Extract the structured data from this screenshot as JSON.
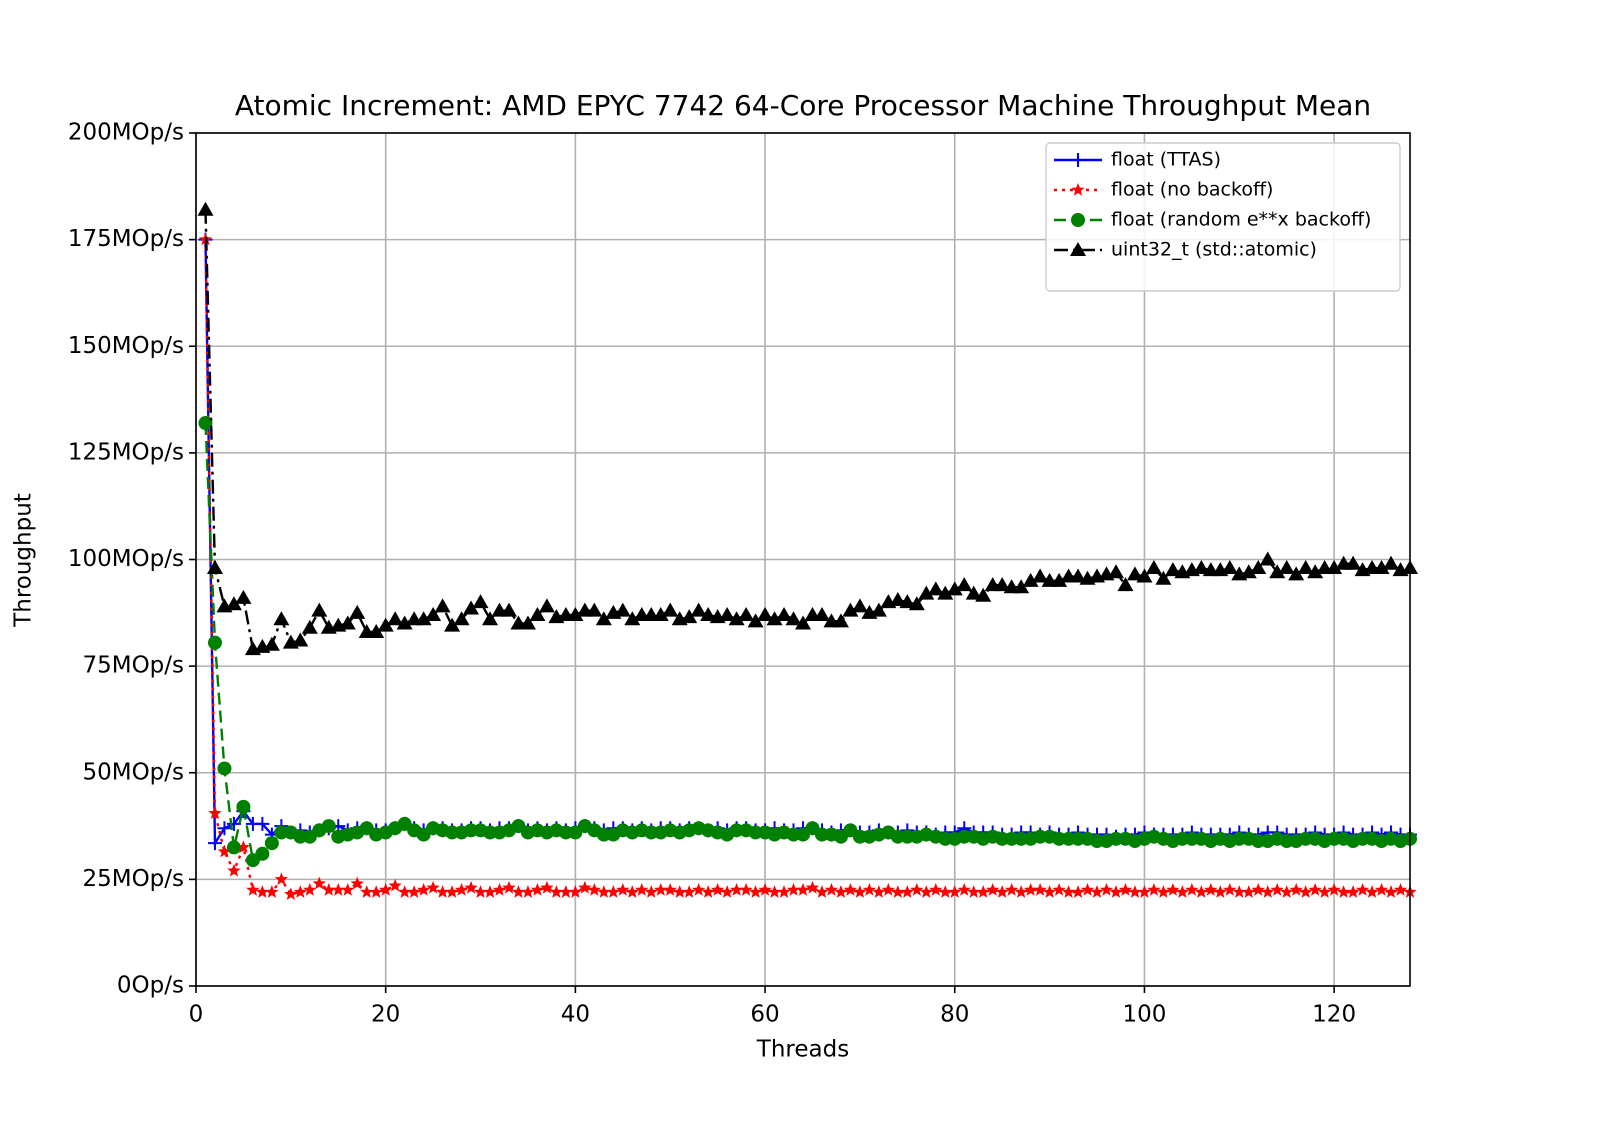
{
  "chart_data": {
    "type": "line",
    "title": "Atomic Increment: AMD EPYC 7742 64-Core Processor Machine Throughput Mean",
    "x_label": "Threads",
    "y_label": "Throughput",
    "xlim": [
      0,
      128
    ],
    "xticks": [
      0,
      20,
      40,
      60,
      80,
      100,
      120
    ],
    "ylim": [
      0,
      200
    ],
    "yticks": [
      {
        "value": 0,
        "label": "0Op/s"
      },
      {
        "value": 25,
        "label": "25MOp/s"
      },
      {
        "value": 50,
        "label": "50MOp/s"
      },
      {
        "value": 75,
        "label": "75MOp/s"
      },
      {
        "value": 100,
        "label": "100MOp/s"
      },
      {
        "value": 125,
        "label": "125MOp/s"
      },
      {
        "value": 150,
        "label": "150MOp/s"
      },
      {
        "value": 175,
        "label": "175MOp/s"
      },
      {
        "value": 200,
        "label": "200MOp/s"
      }
    ],
    "grid": true,
    "legend": "upper right",
    "x": [
      1,
      2,
      3,
      4,
      5,
      6,
      7,
      8,
      9,
      10,
      11,
      12,
      13,
      14,
      15,
      16,
      17,
      18,
      19,
      20,
      21,
      22,
      23,
      24,
      25,
      26,
      27,
      28,
      29,
      30,
      31,
      32,
      33,
      34,
      35,
      36,
      37,
      38,
      39,
      40,
      41,
      42,
      43,
      44,
      45,
      46,
      47,
      48,
      49,
      50,
      51,
      52,
      53,
      54,
      55,
      56,
      57,
      58,
      59,
      60,
      61,
      62,
      63,
      64,
      65,
      66,
      67,
      68,
      69,
      70,
      71,
      72,
      73,
      74,
      75,
      76,
      77,
      78,
      79,
      80,
      81,
      82,
      83,
      84,
      85,
      86,
      87,
      88,
      89,
      90,
      91,
      92,
      93,
      94,
      95,
      96,
      97,
      98,
      99,
      100,
      101,
      102,
      103,
      104,
      105,
      106,
      107,
      108,
      109,
      110,
      111,
      112,
      113,
      114,
      115,
      116,
      117,
      118,
      119,
      120,
      121,
      122,
      123,
      124,
      125,
      126,
      127,
      128
    ],
    "series": [
      {
        "name": "float (TTAS)",
        "color": "#0000ff",
        "linestyle": "solid",
        "marker": "plus",
        "values": [
          175,
          33.5,
          37,
          38,
          41,
          38,
          38,
          35.5,
          37.5,
          36,
          36.5,
          36,
          36.5,
          37,
          37.5,
          36.5,
          37,
          37,
          36.5,
          36.5,
          37,
          38,
          37,
          36.5,
          37,
          37,
          36.5,
          36.5,
          37,
          37,
          36.5,
          37,
          37,
          37.5,
          36.5,
          37,
          36.5,
          37,
          36.5,
          37,
          37.5,
          37,
          36.5,
          37,
          37,
          36.5,
          37,
          36.5,
          37,
          37,
          36.5,
          37,
          37,
          36.5,
          37,
          36.5,
          37,
          37,
          36.5,
          36.5,
          37,
          36.5,
          36.5,
          37,
          37,
          36.5,
          36,
          36.5,
          36.5,
          36,
          36,
          36.5,
          36,
          36,
          36.5,
          36,
          36,
          35.5,
          36,
          36,
          37,
          36,
          36,
          36,
          35.5,
          35.5,
          36,
          36,
          35.5,
          36,
          35.5,
          35.5,
          36,
          35.5,
          35.5,
          35.5,
          35,
          35.5,
          35.5,
          36,
          35.5,
          35.5,
          35.5,
          35.5,
          36,
          35.5,
          35.5,
          35.5,
          35.5,
          36,
          35.5,
          35.5,
          36,
          36,
          35.5,
          35.5,
          35.5,
          36,
          35.5,
          35.5,
          36,
          35.5,
          35.5,
          36,
          35.5,
          36,
          35.5,
          35.5
        ]
      },
      {
        "name": "float (no backoff)",
        "color": "#ff0000",
        "linestyle": "dotted",
        "marker": "star",
        "values": [
          175,
          40.5,
          31.5,
          27,
          32.5,
          22.5,
          22,
          22,
          25,
          21.5,
          22,
          22.5,
          24,
          22.5,
          22.5,
          22.5,
          24,
          22,
          22,
          22.5,
          23.5,
          22,
          22,
          22.5,
          23,
          22,
          22,
          22.5,
          23,
          22,
          22,
          22.5,
          23,
          22,
          22,
          22.5,
          23,
          22,
          22,
          22,
          23,
          22.5,
          22,
          22,
          22.5,
          22,
          22.5,
          22,
          22.5,
          22.5,
          22,
          22,
          22.5,
          22,
          22.5,
          22,
          22.5,
          22.5,
          22,
          22.5,
          22,
          22,
          22.5,
          22.5,
          23,
          22,
          22.5,
          22,
          22.5,
          22,
          22.5,
          22,
          22.5,
          22,
          22,
          22.5,
          22,
          22.5,
          22,
          22,
          22.5,
          22,
          22,
          22.5,
          22,
          22.5,
          22,
          22.5,
          22.5,
          22,
          22.5,
          22,
          22,
          22.5,
          22,
          22.5,
          22,
          22.5,
          22,
          22,
          22.5,
          22,
          22.5,
          22,
          22.5,
          22,
          22.5,
          22,
          22.5,
          22,
          22,
          22.5,
          22,
          22.5,
          22,
          22.5,
          22,
          22.5,
          22,
          22.5,
          22,
          22,
          22.5,
          22,
          22.5,
          22,
          22.5,
          22
        ]
      },
      {
        "name": "float (random e**x backoff)",
        "color": "#008000",
        "linestyle": "dashed",
        "marker": "circle",
        "values": [
          132,
          80.5,
          51,
          32.5,
          42,
          29.5,
          31,
          33.5,
          36,
          36,
          35,
          35,
          36.5,
          37.5,
          35,
          35.5,
          36,
          37,
          35.5,
          36,
          37,
          38,
          36.5,
          35.5,
          37,
          36.5,
          36,
          36,
          36.5,
          36.5,
          36,
          36,
          36.5,
          37.5,
          36,
          36.5,
          36,
          36.5,
          36,
          36,
          37.5,
          36.5,
          35.5,
          35.5,
          36.5,
          36,
          36.5,
          36,
          36,
          36.5,
          36,
          36.5,
          37,
          36.5,
          36,
          35.5,
          36.5,
          36.5,
          36,
          36,
          35.5,
          36,
          35.5,
          35.5,
          37,
          35.5,
          35.5,
          35,
          36.5,
          35,
          35,
          35.5,
          36,
          35,
          35,
          35,
          35.5,
          35,
          34.5,
          34.5,
          35,
          35,
          34.5,
          35,
          34.5,
          34.5,
          34.5,
          34.5,
          35,
          35,
          34.5,
          34.5,
          34.5,
          34.5,
          34,
          34,
          34.5,
          34.5,
          34,
          34.5,
          35,
          34.5,
          34,
          34.5,
          34.5,
          34.5,
          34,
          34.5,
          34,
          34.5,
          34.5,
          34,
          34,
          34.5,
          34,
          34,
          34.5,
          34.5,
          34,
          34.5,
          34.5,
          34,
          34.5,
          34.5,
          34,
          34.5,
          34,
          34.5
        ]
      },
      {
        "name": "uint32_t (std::atomic)",
        "color": "#000000",
        "linestyle": "dashdot",
        "marker": "triangle",
        "values": [
          182,
          98,
          89,
          89.5,
          91,
          79,
          79.5,
          80,
          86,
          80.5,
          81,
          84,
          88,
          84,
          84.5,
          85,
          87.5,
          83,
          83,
          84.5,
          86,
          85,
          86,
          86,
          87,
          89,
          84.5,
          86,
          88.5,
          90,
          86,
          88,
          88,
          85,
          85,
          87,
          89,
          86.5,
          87,
          87,
          88,
          88,
          86,
          87.5,
          88,
          86,
          87,
          87,
          87,
          88,
          86,
          86.5,
          88,
          87,
          86.5,
          87,
          86,
          87,
          85.5,
          87,
          86,
          87,
          86,
          85,
          87,
          87,
          85.5,
          85.5,
          88,
          89,
          87.5,
          88,
          90,
          90.5,
          90,
          89.5,
          92,
          93,
          92,
          93,
          94,
          92,
          91.5,
          94,
          94,
          93.5,
          93.5,
          95,
          96,
          95,
          95,
          96,
          96,
          95.5,
          96,
          96.5,
          97,
          94,
          96.5,
          96,
          98,
          95.5,
          97.5,
          97,
          97.5,
          98,
          97.5,
          97.5,
          98,
          96.5,
          97,
          98,
          100,
          97,
          98,
          96.5,
          98,
          97,
          98,
          98,
          99,
          99,
          97.5,
          98,
          98,
          99,
          97.5,
          98
        ]
      }
    ]
  }
}
